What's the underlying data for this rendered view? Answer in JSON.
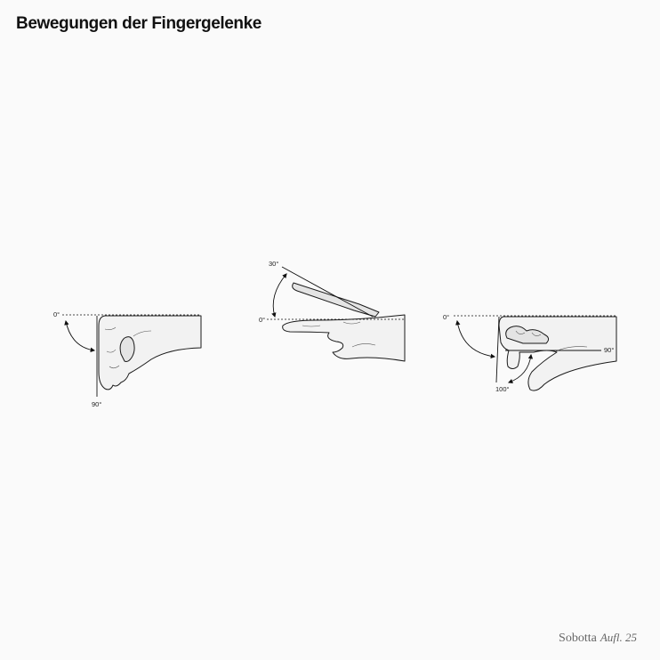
{
  "title": "Bewegungen der Fingergelenke",
  "figures": [
    {
      "id": "flexion-dip",
      "labels": {
        "start": "0°",
        "end": "90°"
      }
    },
    {
      "id": "hyperextension",
      "labels": {
        "start": "0°",
        "end": "30°"
      }
    },
    {
      "id": "flexion-pip",
      "labels": {
        "start": "0°",
        "end1": "90°",
        "end2": "100°"
      }
    }
  ],
  "brand": {
    "name": "Sobotta",
    "edition": "Aufl. 25"
  },
  "colors": {
    "background": "#fafafa",
    "line": "#111111",
    "hand_fill": "#f2f2f2"
  }
}
